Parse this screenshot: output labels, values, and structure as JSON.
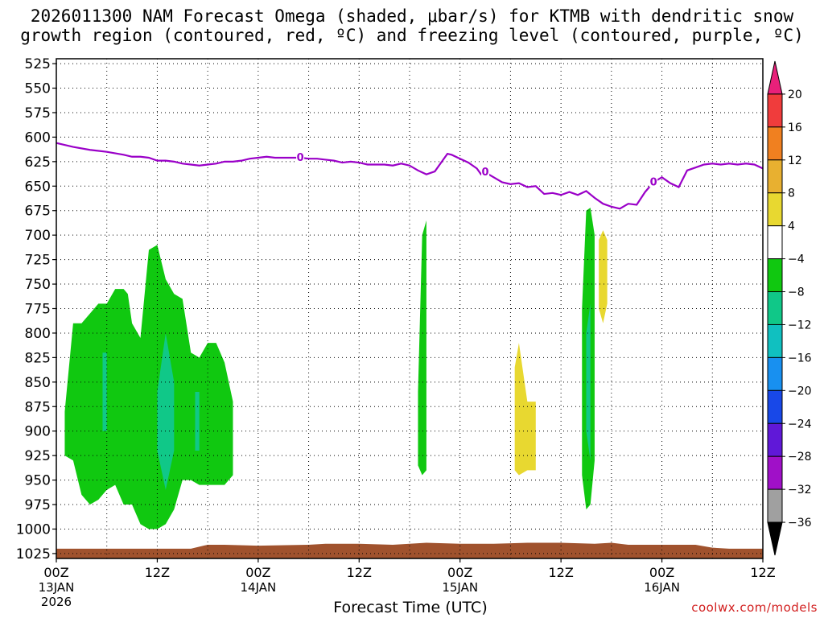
{
  "title_line1": "2026011300 NAM Forecast Omega (shaded, μbar/s) for KTMB with dendritic snow",
  "title_line2": "growth region (contoured, red, ºC) and freezing level (contoured, purple, ºC)",
  "credit": "coolwx.com/models",
  "colors": {
    "freezing_line": "#9a00c8",
    "ground": "#a0522d",
    "grid": "#000000"
  },
  "chart_data": {
    "type": "heatmap",
    "title": "2026011300 NAM Forecast Omega (shaded, μbar/s) for KTMB with dendritic snow growth region (contoured, red, ºC) and freezing level (contoured, purple, ºC)",
    "xlabel": "Forecast Time (UTC)",
    "ylabel": "",
    "y_axis": {
      "unit": "hPa",
      "inverted": true,
      "range": [
        1030,
        520
      ],
      "ticks": [
        525,
        550,
        575,
        600,
        625,
        650,
        675,
        700,
        725,
        750,
        775,
        800,
        825,
        850,
        875,
        900,
        925,
        950,
        975,
        1000,
        1025
      ]
    },
    "x_axis": {
      "unit": "forecast hour",
      "range": [
        0,
        84
      ],
      "ticks": [
        {
          "hour": 0,
          "label": "00Z",
          "sub": "13JAN",
          "sub2": "2026"
        },
        {
          "hour": 12,
          "label": "12Z",
          "sub": "",
          "sub2": ""
        },
        {
          "hour": 24,
          "label": "00Z",
          "sub": "14JAN",
          "sub2": ""
        },
        {
          "hour": 36,
          "label": "12Z",
          "sub": "",
          "sub2": ""
        },
        {
          "hour": 48,
          "label": "00Z",
          "sub": "15JAN",
          "sub2": ""
        },
        {
          "hour": 60,
          "label": "12Z",
          "sub": "",
          "sub2": ""
        },
        {
          "hour": 72,
          "label": "00Z",
          "sub": "16JAN",
          "sub2": ""
        },
        {
          "hour": 84,
          "label": "12Z",
          "sub": "",
          "sub2": ""
        }
      ]
    },
    "grid": true,
    "colorbar": {
      "levels": [
        "20",
        "16",
        "12",
        "8",
        "4",
        "−4",
        "−8",
        "−12",
        "−16",
        "−20",
        "−24",
        "−28",
        "−32",
        "−36"
      ],
      "colors": [
        "#e8207a",
        "#f03c3c",
        "#f08020",
        "#e8b030",
        "#e8d830",
        "#ffffff",
        "#10c810",
        "#10c888",
        "#10c0c0",
        "#1890f0",
        "#1848e8",
        "#6018d8",
        "#a010c8",
        "#a0a0a0",
        "#000000"
      ]
    },
    "freezing_level": {
      "label": "0",
      "label_hours": [
        29,
        51,
        71
      ],
      "x": [
        0,
        2,
        4,
        6,
        8,
        9,
        10,
        11,
        12,
        13,
        14,
        15,
        16,
        17,
        18,
        19,
        20,
        21,
        22,
        23,
        24,
        25,
        26,
        27,
        28,
        29,
        30,
        31,
        32,
        33,
        34,
        35,
        36,
        37,
        38,
        39,
        40,
        41,
        42,
        43,
        44,
        45,
        46,
        46.5,
        47,
        48,
        49,
        50,
        50.5,
        51,
        52,
        53,
        54,
        55,
        56,
        57,
        58,
        59,
        60,
        61,
        62,
        63,
        64,
        65,
        66,
        67,
        68,
        69,
        70,
        71,
        72,
        73,
        74,
        75,
        76,
        77,
        78,
        79,
        80,
        81,
        82,
        83,
        84
      ],
      "y": [
        606,
        610,
        613,
        615,
        618,
        620,
        620,
        621,
        624,
        624,
        625,
        627,
        628,
        629,
        628,
        627,
        625,
        625,
        624,
        622,
        621,
        620,
        621,
        621,
        621,
        621,
        622,
        622,
        623,
        624,
        626,
        625,
        626,
        628,
        628,
        628,
        629,
        627,
        629,
        634,
        638,
        635,
        623,
        617,
        618,
        622,
        626,
        632,
        638,
        636,
        641,
        646,
        648,
        647,
        651,
        650,
        658,
        657,
        659,
        656,
        659,
        655,
        662,
        668,
        671,
        673,
        668,
        669,
        656,
        646,
        641,
        647,
        651,
        634,
        631,
        628,
        627,
        628,
        627,
        628,
        627,
        628,
        632
      ]
    },
    "omega_regions": [
      {
        "level": "−4",
        "color": "#10c810",
        "hours": [
          1,
          2,
          3,
          4,
          5,
          6,
          7,
          8,
          8.5,
          9,
          10,
          11,
          12,
          13,
          14,
          15,
          16,
          17,
          18,
          19,
          20,
          21
        ],
        "top": [
          880,
          790,
          790,
          780,
          770,
          770,
          755,
          755,
          760,
          790,
          805,
          715,
          710,
          745,
          760,
          765,
          820,
          825,
          810,
          810,
          830,
          870
        ],
        "bottom": [
          925,
          930,
          965,
          975,
          970,
          960,
          955,
          975,
          975,
          975,
          995,
          1000,
          1000,
          995,
          980,
          950,
          950,
          955,
          955,
          955,
          955,
          945
        ]
      },
      {
        "level": "−8",
        "color": "#10c888",
        "hours": [
          12,
          13,
          14
        ],
        "top": [
          860,
          800,
          850
        ],
        "bottom": [
          920,
          960,
          920
        ]
      },
      {
        "level": "−8",
        "color": "#10c888",
        "hours": [
          5.5,
          6
        ],
        "top": [
          820,
          820
        ],
        "bottom": [
          900,
          900
        ]
      },
      {
        "level": "−8",
        "color": "#10c888",
        "hours": [
          16.5,
          17
        ],
        "top": [
          860,
          860
        ],
        "bottom": [
          920,
          920
        ]
      },
      {
        "level": "−4",
        "color": "#10c810",
        "hours": [
          43,
          43.5,
          44
        ],
        "top": [
          860,
          700,
          685
        ],
        "bottom": [
          935,
          945,
          940
        ]
      },
      {
        "level": "−4",
        "color": "#10c810",
        "hours": [
          62.5,
          63,
          63.5,
          64
        ],
        "top": [
          775,
          675,
          672,
          700
        ],
        "bottom": [
          945,
          980,
          975,
          930
        ]
      },
      {
        "level": "−8",
        "color": "#10c888",
        "hours": [
          63,
          63.5
        ],
        "top": [
          800,
          770
        ],
        "bottom": [
          900,
          930
        ]
      },
      {
        "level": "4",
        "color": "#e8d830",
        "hours": [
          54.5,
          55,
          56,
          57
        ],
        "top": [
          835,
          810,
          870,
          870
        ],
        "bottom": [
          940,
          945,
          940,
          940
        ]
      },
      {
        "level": "4",
        "color": "#e8d830",
        "hours": [
          64.5,
          65,
          65.5
        ],
        "top": [
          705,
          695,
          705
        ],
        "bottom": [
          775,
          790,
          770
        ]
      }
    ],
    "ground": {
      "color": "#a0522d",
      "hours": [
        0,
        8,
        16,
        18,
        20,
        24,
        30,
        32,
        36,
        40,
        42,
        44,
        48,
        52,
        56,
        60,
        64,
        66,
        68,
        72,
        76,
        78,
        80,
        84
      ],
      "top_hpa": [
        1020,
        1020,
        1020,
        1016,
        1016,
        1017,
        1016,
        1015,
        1015,
        1016,
        1015,
        1014,
        1015,
        1015,
        1014,
        1014,
        1015,
        1014,
        1016,
        1016,
        1016,
        1019,
        1020,
        1020
      ]
    }
  }
}
